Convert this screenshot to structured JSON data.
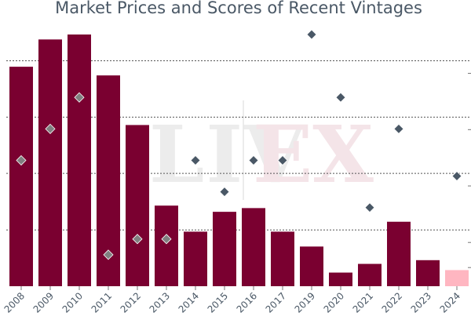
{
  "chart_data": {
    "type": "bar",
    "title": "Market Prices and Scores of Recent Vintages",
    "categories": [
      "2008",
      "2009",
      "2010",
      "2011",
      "2012",
      "2013",
      "2014",
      "2015",
      "2016",
      "2017",
      "2019",
      "2020",
      "2021",
      "2022",
      "2023",
      "2024"
    ],
    "series": [
      {
        "type": "bar",
        "values": [
          88.5,
          99.5,
          101.5,
          85,
          65,
          32.5,
          22,
          30,
          31.5,
          22,
          16,
          5.5,
          9,
          26,
          10.5,
          6.5
        ],
        "colors": [
          "#7a0030",
          "#7a0030",
          "#7a0030",
          "#7a0030",
          "#7a0030",
          "#7a0030",
          "#7a0030",
          "#7a0030",
          "#7a0030",
          "#7a0030",
          "#7a0030",
          "#7a0030",
          "#7a0030",
          "#7a0030",
          "#7a0030",
          "#ffb6c1"
        ]
      },
      {
        "type": "scatter",
        "marker": "diamond",
        "values": [
          95.4,
          96.4,
          97.4,
          92.4,
          92.9,
          92.9,
          95.4,
          94.4,
          95.4,
          95.4,
          99.4,
          97.4,
          93.9,
          96.4,
          null,
          94.9
        ],
        "colors": [
          "#808080",
          "#808080",
          "#808080",
          "#808080",
          "#808080",
          "#808080",
          "#4a5866",
          "#4a5866",
          "#4a5866",
          "#4a5866",
          "#4a5866",
          "#4a5866",
          "#4a5866",
          "#4a5866",
          "#4a5866",
          "#4a5866"
        ]
      }
    ],
    "yaxis_left": {
      "range": [
        0,
        101.5
      ],
      "tick_labels": false
    },
    "yaxis_right": {
      "range": [
        91.4,
        99.4
      ],
      "tick_labels": false
    },
    "gridlines": [
      22.7,
      45.5,
      68.2,
      90.9
    ],
    "watermark": "LIVEX",
    "colors": {
      "bar": "#7a0030",
      "bar_highlight": "#ffb6c1",
      "marker_muted": "#808080",
      "marker": "#4a5866",
      "text": "#4a5866"
    }
  }
}
